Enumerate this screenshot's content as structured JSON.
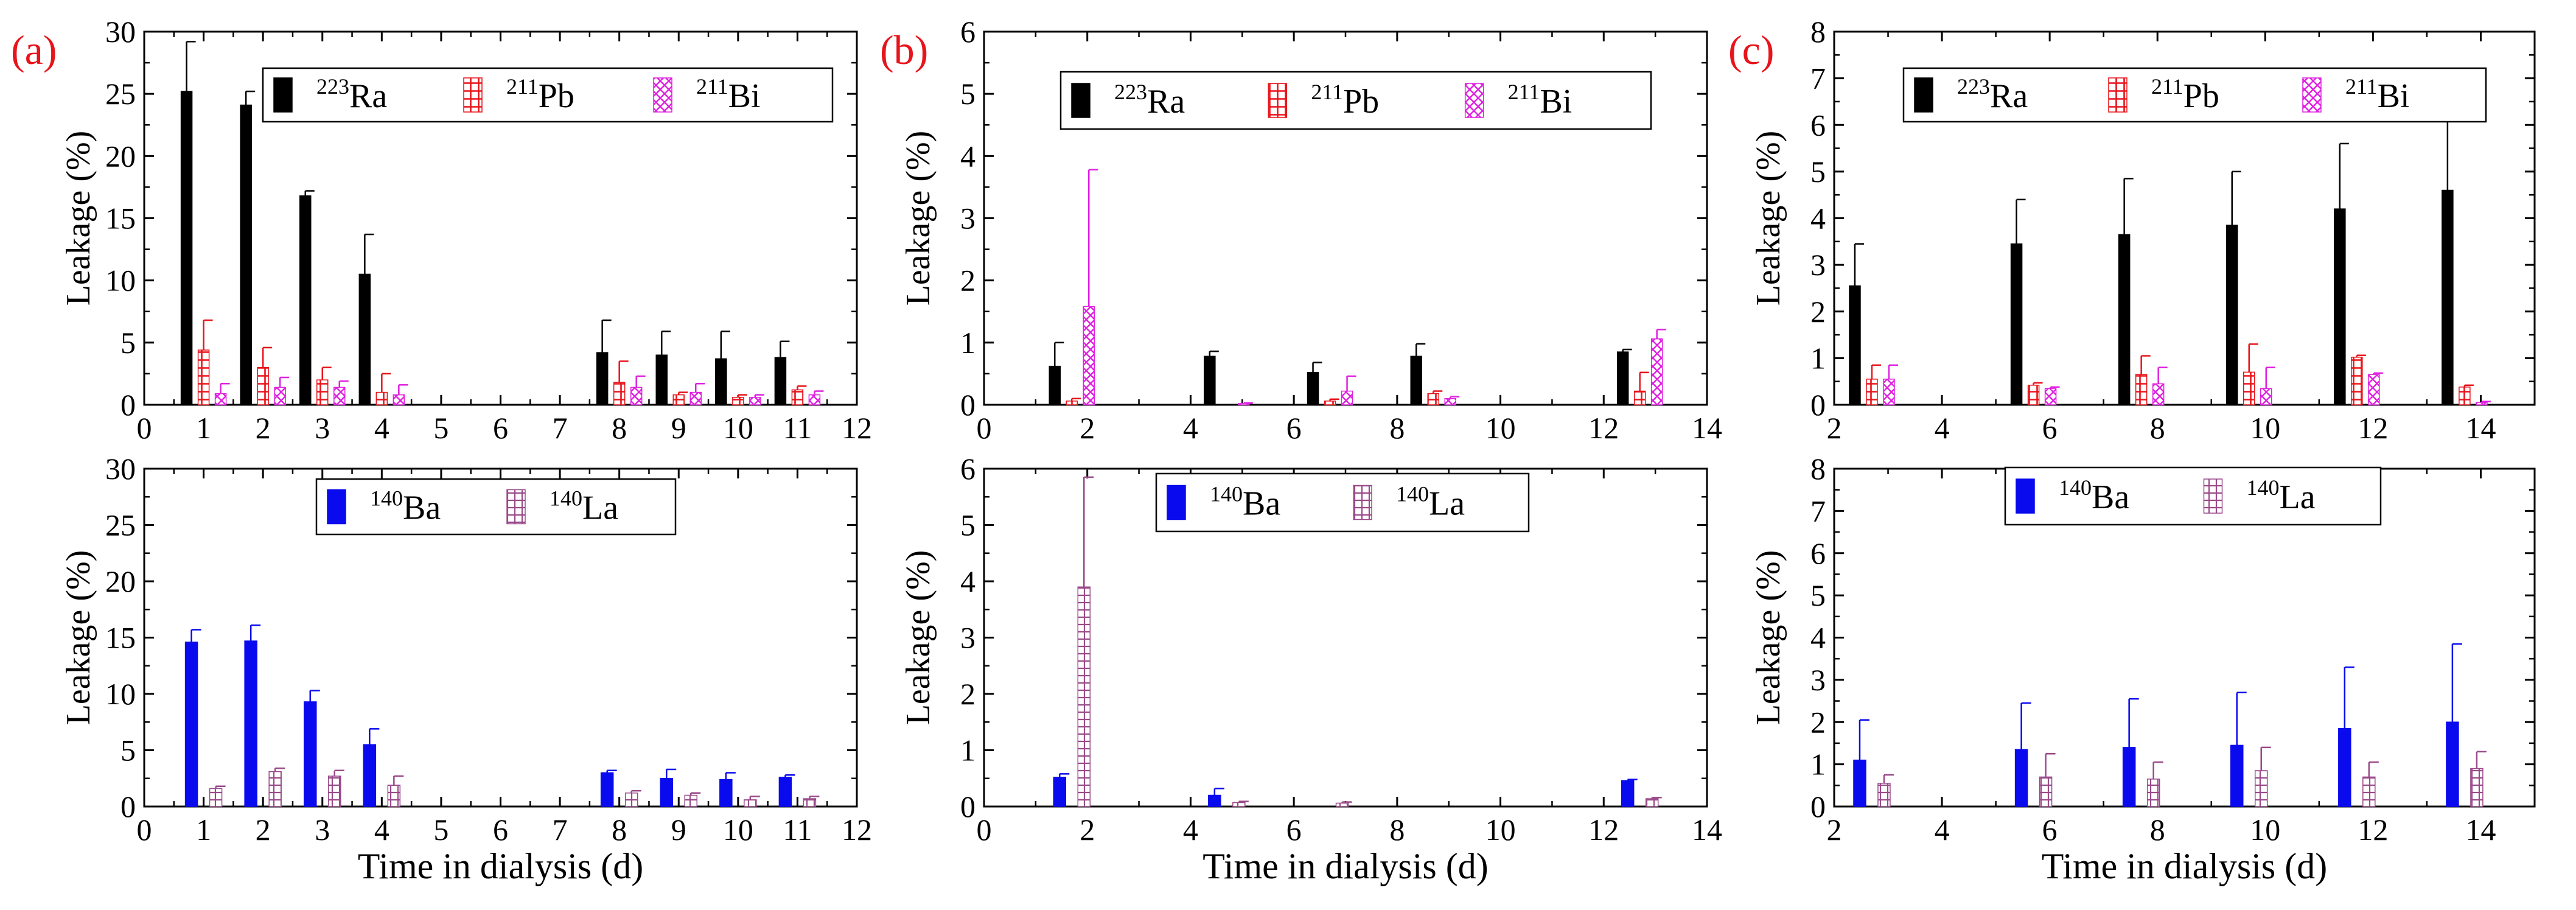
{
  "figure": {
    "panel_labels": [
      "(a)",
      "(b)",
      "(c)"
    ],
    "colors": {
      "label_red": "#e8141b",
      "ra": "#000000",
      "pb": "#e8141b",
      "bi": "#e020e0",
      "ba": "#0a0aee",
      "la": "#9a4a8a"
    }
  },
  "chart_data": [
    {
      "panel": "(a)",
      "row": "top",
      "type": "bar",
      "xlabel": "",
      "ylabel": "Leakage (%)",
      "xlim": [
        0,
        12
      ],
      "ylim": [
        0,
        30
      ],
      "xticks": [
        0,
        1,
        2,
        3,
        4,
        5,
        6,
        7,
        8,
        9,
        10,
        11,
        12
      ],
      "yticks": [
        0,
        5,
        10,
        15,
        20,
        25,
        30
      ],
      "legend": "top-right",
      "grid": false,
      "series": [
        {
          "name": "223Ra",
          "sup": "223",
          "el": "Ra",
          "style": "solid-black",
          "color": "#000000",
          "x": [
            1,
            2,
            3,
            4,
            8,
            9,
            10,
            11
          ],
          "values": [
            25.2,
            24.1,
            16.8,
            10.5,
            4.2,
            4.0,
            3.7,
            3.8
          ],
          "err": [
            4.0,
            1.1,
            0.4,
            3.2,
            2.6,
            1.9,
            2.2,
            1.3
          ]
        },
        {
          "name": "211Pb",
          "sup": "211",
          "el": "Pb",
          "style": "hatch-pb",
          "color": "#e8141b",
          "x": [
            1,
            2,
            3,
            4,
            8,
            9,
            10,
            11
          ],
          "values": [
            4.4,
            3.0,
            2.0,
            1.0,
            1.8,
            0.8,
            0.6,
            1.2
          ],
          "err": [
            2.4,
            1.6,
            1.0,
            1.5,
            1.7,
            0.2,
            0.2,
            0.3
          ]
        },
        {
          "name": "211Bi",
          "sup": "211",
          "el": "Bi",
          "style": "hatch-bi",
          "color": "#e020e0",
          "x": [
            1,
            2,
            3,
            4,
            8,
            9,
            10,
            11
          ],
          "values": [
            0.9,
            1.4,
            1.4,
            0.8,
            1.4,
            1.0,
            0.6,
            0.8
          ],
          "err": [
            0.8,
            0.8,
            0.5,
            0.8,
            0.9,
            0.7,
            0.2,
            0.3
          ]
        }
      ]
    },
    {
      "panel": "(a)",
      "row": "bottom",
      "type": "bar",
      "xlabel": "Time in dialysis (d)",
      "ylabel": "Leakage (%)",
      "xlim": [
        0,
        12
      ],
      "ylim": [
        0,
        30
      ],
      "xticks": [
        0,
        1,
        2,
        3,
        4,
        5,
        6,
        7,
        8,
        9,
        10,
        11,
        12
      ],
      "yticks": [
        0,
        5,
        10,
        15,
        20,
        25,
        30
      ],
      "legend": "top-right",
      "grid": false,
      "series": [
        {
          "name": "140Ba",
          "sup": "140",
          "el": "Ba",
          "style": "solid-blue",
          "color": "#0a0aee",
          "x": [
            1,
            2,
            3,
            4,
            8,
            9,
            10,
            11
          ],
          "values": [
            14.6,
            14.7,
            9.3,
            5.5,
            3.0,
            2.5,
            2.4,
            2.6
          ],
          "err": [
            1.1,
            1.4,
            1.0,
            1.4,
            0.2,
            0.8,
            0.6,
            0.2
          ]
        },
        {
          "name": "140La",
          "sup": "140",
          "el": "La",
          "style": "hatch-la",
          "color": "#9a4a8a",
          "x": [
            1,
            2,
            3,
            4,
            8,
            9,
            10,
            11
          ],
          "values": [
            1.6,
            3.1,
            2.7,
            1.9,
            1.2,
            1.0,
            0.6,
            0.7
          ],
          "err": [
            0.2,
            0.3,
            0.5,
            0.8,
            0.2,
            0.2,
            0.3,
            0.2
          ]
        }
      ]
    },
    {
      "panel": "(b)",
      "row": "top",
      "type": "bar",
      "xlabel": "",
      "ylabel": "Leakage (%)",
      "xlim": [
        0,
        14
      ],
      "ylim": [
        0,
        6
      ],
      "xticks": [
        0,
        2,
        4,
        6,
        8,
        10,
        12,
        14
      ],
      "yticks": [
        0,
        1,
        2,
        3,
        4,
        5,
        6
      ],
      "legend": "top-right",
      "grid": false,
      "series": [
        {
          "name": "223Ra",
          "sup": "223",
          "el": "Ra",
          "style": "solid-black",
          "color": "#000000",
          "x": [
            1.7,
            4.7,
            6.7,
            8.7,
            12.7
          ],
          "values": [
            0.62,
            0.78,
            0.52,
            0.78,
            0.85
          ],
          "err": [
            0.38,
            0.08,
            0.16,
            0.2,
            0.04
          ]
        },
        {
          "name": "211Pb",
          "sup": "211",
          "el": "Pb",
          "style": "hatch-pb",
          "color": "#e8141b",
          "x": [
            1.7,
            4.7,
            6.7,
            8.7,
            12.7
          ],
          "values": [
            0.06,
            0.0,
            0.06,
            0.18,
            0.22
          ],
          "err": [
            0.04,
            0.0,
            0.03,
            0.04,
            0.3
          ]
        },
        {
          "name": "211Bi",
          "sup": "211",
          "el": "Bi",
          "style": "hatch-bi",
          "color": "#e020e0",
          "x": [
            1.7,
            4.7,
            6.7,
            8.7,
            12.7
          ],
          "values": [
            1.58,
            0.02,
            0.22,
            0.1,
            1.06
          ],
          "err": [
            2.2,
            0.01,
            0.24,
            0.03,
            0.15
          ]
        }
      ]
    },
    {
      "panel": "(b)",
      "row": "bottom",
      "type": "bar",
      "xlabel": "Time in dialysis (d)",
      "ylabel": "Leakage (%)",
      "xlim": [
        0,
        14
      ],
      "ylim": [
        0,
        6
      ],
      "xticks": [
        0,
        2,
        4,
        6,
        8,
        10,
        12,
        14
      ],
      "yticks": [
        0,
        1,
        2,
        3,
        4,
        5,
        6
      ],
      "legend": "top-right",
      "grid": false,
      "series": [
        {
          "name": "140Ba",
          "sup": "140",
          "el": "Ba",
          "style": "solid-blue",
          "color": "#0a0aee",
          "x": [
            1.7,
            4.7,
            6.7,
            8.7,
            12.7
          ],
          "values": [
            0.52,
            0.2,
            0.0,
            0.0,
            0.46
          ],
          "err": [
            0.06,
            0.12,
            0.0,
            0.0,
            0.02
          ]
        },
        {
          "name": "140La",
          "sup": "140",
          "el": "La",
          "style": "hatch-la",
          "color": "#9a4a8a",
          "x": [
            1.7,
            4.7,
            6.7,
            8.7,
            12.7
          ],
          "values": [
            3.9,
            0.07,
            0.06,
            0.0,
            0.14
          ],
          "err": [
            1.95,
            0.02,
            0.02,
            0.0,
            0.02
          ]
        }
      ]
    },
    {
      "panel": "(c)",
      "row": "top",
      "type": "bar",
      "xlabel": "",
      "ylabel": "Leakage (%)",
      "xlim": [
        2,
        15
      ],
      "ylim": [
        0,
        8
      ],
      "xticks": [
        2,
        4,
        6,
        8,
        10,
        12,
        14
      ],
      "yticks": [
        0,
        1,
        2,
        3,
        4,
        5,
        6,
        7,
        8
      ],
      "legend": "top-right",
      "grid": false,
      "series": [
        {
          "name": "223Ra",
          "sup": "223",
          "el": "Ra",
          "style": "solid-black",
          "color": "#000000",
          "x": [
            2.7,
            5.7,
            7.7,
            9.7,
            11.7,
            13.7
          ],
          "values": [
            2.55,
            3.45,
            3.65,
            3.85,
            4.2,
            4.6
          ],
          "err": [
            0.9,
            0.95,
            1.2,
            1.15,
            1.4,
            1.5
          ]
        },
        {
          "name": "211Pb",
          "sup": "211",
          "el": "Pb",
          "style": "hatch-pb",
          "color": "#e8141b",
          "x": [
            2.7,
            5.7,
            7.7,
            9.7,
            11.7,
            13.7
          ],
          "values": [
            0.55,
            0.42,
            0.65,
            0.7,
            1.02,
            0.38
          ],
          "err": [
            0.3,
            0.05,
            0.4,
            0.6,
            0.04,
            0.04
          ]
        },
        {
          "name": "211Bi",
          "sup": "211",
          "el": "Bi",
          "style": "hatch-bi",
          "color": "#e020e0",
          "x": [
            2.7,
            5.7,
            7.7,
            9.7,
            11.7,
            13.7
          ],
          "values": [
            0.55,
            0.35,
            0.45,
            0.35,
            0.65,
            0.05
          ],
          "err": [
            0.3,
            0.03,
            0.35,
            0.45,
            0.03,
            0.02
          ]
        }
      ]
    },
    {
      "panel": "(c)",
      "row": "bottom",
      "type": "bar",
      "xlabel": "Time in dialysis (d)",
      "ylabel": "Leakage (%)",
      "xlim": [
        2,
        15
      ],
      "ylim": [
        0,
        8
      ],
      "xticks": [
        2,
        4,
        6,
        8,
        10,
        12,
        14
      ],
      "yticks": [
        0,
        1,
        2,
        3,
        4,
        5,
        6,
        7,
        8
      ],
      "legend": "top-right",
      "grid": false,
      "series": [
        {
          "name": "140Ba",
          "sup": "140",
          "el": "Ba",
          "style": "solid-blue",
          "color": "#0a0aee",
          "x": [
            2.7,
            5.7,
            7.7,
            9.7,
            11.7,
            13.7
          ],
          "values": [
            1.1,
            1.35,
            1.4,
            1.45,
            1.85,
            2.0
          ],
          "err": [
            0.95,
            1.1,
            1.15,
            1.25,
            1.45,
            1.85
          ]
        },
        {
          "name": "140La",
          "sup": "140",
          "el": "La",
          "style": "hatch-la",
          "color": "#9a4a8a",
          "x": [
            2.7,
            5.7,
            7.7,
            9.7,
            11.7,
            13.7
          ],
          "values": [
            0.55,
            0.7,
            0.65,
            0.85,
            0.7,
            0.9
          ],
          "err": [
            0.2,
            0.55,
            0.4,
            0.55,
            0.35,
            0.4
          ]
        }
      ]
    }
  ]
}
